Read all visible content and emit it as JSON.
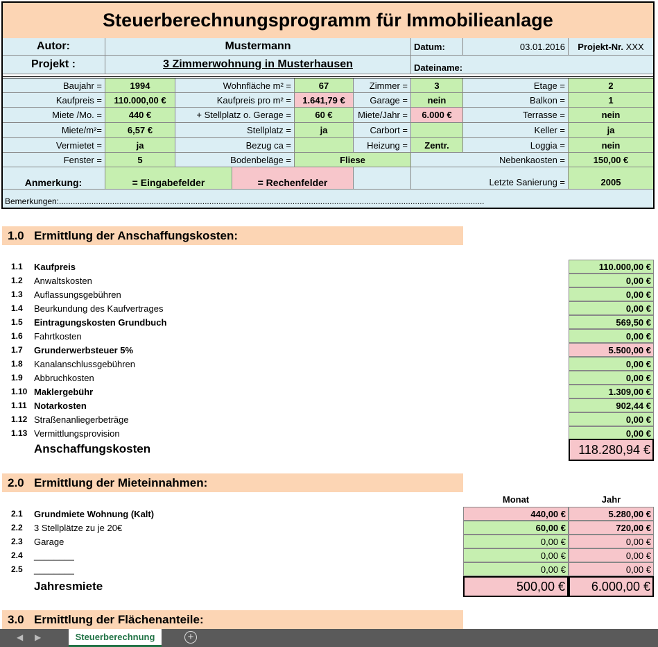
{
  "title": "Steuerberechnungsprogramm für Immobilieanlage",
  "header": {
    "autor_label": "Autor:",
    "autor": "Mustermann",
    "datum_label": "Datum:",
    "datum": "03.01.2016",
    "projektnr_label": "Projekt-Nr.",
    "projektnr": "XXX",
    "projekt_label": "Projekt :",
    "projekt": "3 Zimmerwohnung in Musterhausen",
    "dateiname_label": "Dateiname:"
  },
  "props": {
    "baujahr_l": "Baujahr =",
    "baujahr": "1994",
    "wohnflaeche_l": "Wohnfläche m² =",
    "wohnflaeche": "67",
    "zimmer_l": "Zimmer =",
    "zimmer": "3",
    "etage_l": "Etage =",
    "etage": "2",
    "kaufpreis_l": "Kaufpreis =",
    "kaufpreis": "110.000,00 €",
    "kaufpreis_qm_l": "Kaufpreis pro m² =",
    "kaufpreis_qm": "1.641,79 €",
    "garage_l": "Garage =",
    "garage": "nein",
    "balkon_l": "Balkon =",
    "balkon": "1",
    "miete_l": "Miete /Mo. =",
    "miete": "440 €",
    "stellplatz_garage_l": "+ Stellplatz o. Gerage =",
    "stellplatz_garage": "60 €",
    "miete_jahr_l": "Miete/Jahr =",
    "miete_jahr": "6.000 €",
    "terrasse_l": "Terrasse =",
    "terrasse": "nein",
    "miete_qm_l": "Miete/m²=",
    "miete_qm": "6,57 €",
    "stellplatz_l": "Stellplatz =",
    "stellplatz": "ja",
    "carbort_l": "Carbort =",
    "carbort": "",
    "keller_l": "Keller =",
    "keller": "ja",
    "vermietet_l": "Vermietet =",
    "vermietet": "ja",
    "bezug_l": "Bezug ca =",
    "bezug": "",
    "heizung_l": "Heizung =",
    "heizung": "Zentr.",
    "loggia_l": "Loggia =",
    "loggia": "nein",
    "fenster_l": "Fenster =",
    "fenster": "5",
    "boden_l": "Bodenbeläge =",
    "boden": "Fliese",
    "nebenkosten_l": "Nebenkaosten =",
    "nebenkosten": "150,00 €",
    "anmerkung_l": "Anmerkung:",
    "eingabe": "= Eingabefelder",
    "rechen": "= Rechenfelder",
    "sanierung_l": "Letzte Sanierung =",
    "sanierung": "2005",
    "bemerkungen": "Bemerkungen:........................................................................................................................................................................................"
  },
  "colors": {
    "input": "#c6efb0",
    "calc": "#f7c6cb",
    "header": "#fcd5b4",
    "info": "#dbeef4"
  },
  "s1": {
    "num": "1.0",
    "title": "Ermittlung der Anschaffungskosten:",
    "items": [
      {
        "n": "1.1",
        "label": "Kaufpreis",
        "value": "110.000,00 €",
        "bold": true,
        "calc": false
      },
      {
        "n": "1.2",
        "label": "Anwaltskosten",
        "value": "0,00 €",
        "bold": false,
        "calc": false
      },
      {
        "n": "1.3",
        "label": "Auflassungsgebühren",
        "value": "0,00 €",
        "bold": false,
        "calc": false
      },
      {
        "n": "1.4",
        "label": "Beurkundung des Kaufvertrages",
        "value": "0,00 €",
        "bold": false,
        "calc": false
      },
      {
        "n": "1.5",
        "label": "Eintragungskosten Grundbuch",
        "value": "569,50 €",
        "bold": true,
        "calc": false
      },
      {
        "n": "1.6",
        "label": "Fahrtkosten",
        "value": "0,00 €",
        "bold": false,
        "calc": false
      },
      {
        "n": "1.7",
        "label": "Grunderwerbsteuer 5%",
        "value": "5.500,00 €",
        "bold": true,
        "calc": true
      },
      {
        "n": "1.8",
        "label": "Kanalanschlussgebühren",
        "value": "0,00 €",
        "bold": false,
        "calc": false
      },
      {
        "n": "1.9",
        "label": "Abbruchkosten",
        "value": "0,00 €",
        "bold": false,
        "calc": false
      },
      {
        "n": "1.10",
        "label": "Maklergebühr",
        "value": "1.309,00 €",
        "bold": true,
        "calc": false
      },
      {
        "n": "1.11",
        "label": "Notarkosten",
        "value": "902,44 €",
        "bold": true,
        "calc": false
      },
      {
        "n": "1.12",
        "label": "Straßenanliegerbeträge",
        "value": "0,00 €",
        "bold": false,
        "calc": false
      },
      {
        "n": "1.13",
        "label": "Vermittlungsprovision",
        "value": "0,00 €",
        "bold": false,
        "calc": false
      }
    ],
    "total_label": "Anschaffungskosten",
    "total": "118.280,94 €"
  },
  "s2": {
    "num": "2.0",
    "title": "Ermittlung der Mieteinnahmen:",
    "col_monat": "Monat",
    "col_jahr": "Jahr",
    "items": [
      {
        "n": "2.1",
        "label": "Grundmiete Wohnung (Kalt)",
        "monat": "440,00 €",
        "jahr": "5.280,00 €",
        "bold": true,
        "monat_calc": true
      },
      {
        "n": "2.2",
        "label": "3 Stellplätze zu je 20€",
        "monat": "60,00 €",
        "jahr": "720,00 €",
        "bold": false,
        "monat_calc": false
      },
      {
        "n": "2.3",
        "label": "Garage",
        "monat": "0,00 €",
        "jahr": "0,00 €",
        "bold": false,
        "monat_calc": false
      },
      {
        "n": "2.4",
        "label": "________",
        "monat": "0,00 €",
        "jahr": "0,00 €",
        "bold": false,
        "monat_calc": false
      },
      {
        "n": "2.5",
        "label": "________",
        "monat": "0,00 €",
        "jahr": "0,00 €",
        "bold": false,
        "monat_calc": false
      }
    ],
    "total_label": "Jahresmiete",
    "total_monat": "500,00 €",
    "total_jahr": "6.000,00 €"
  },
  "s3": {
    "num": "3.0",
    "title": "Ermittlung der Flächenanteile:"
  },
  "sheet_tab": "Steuerberechnung"
}
